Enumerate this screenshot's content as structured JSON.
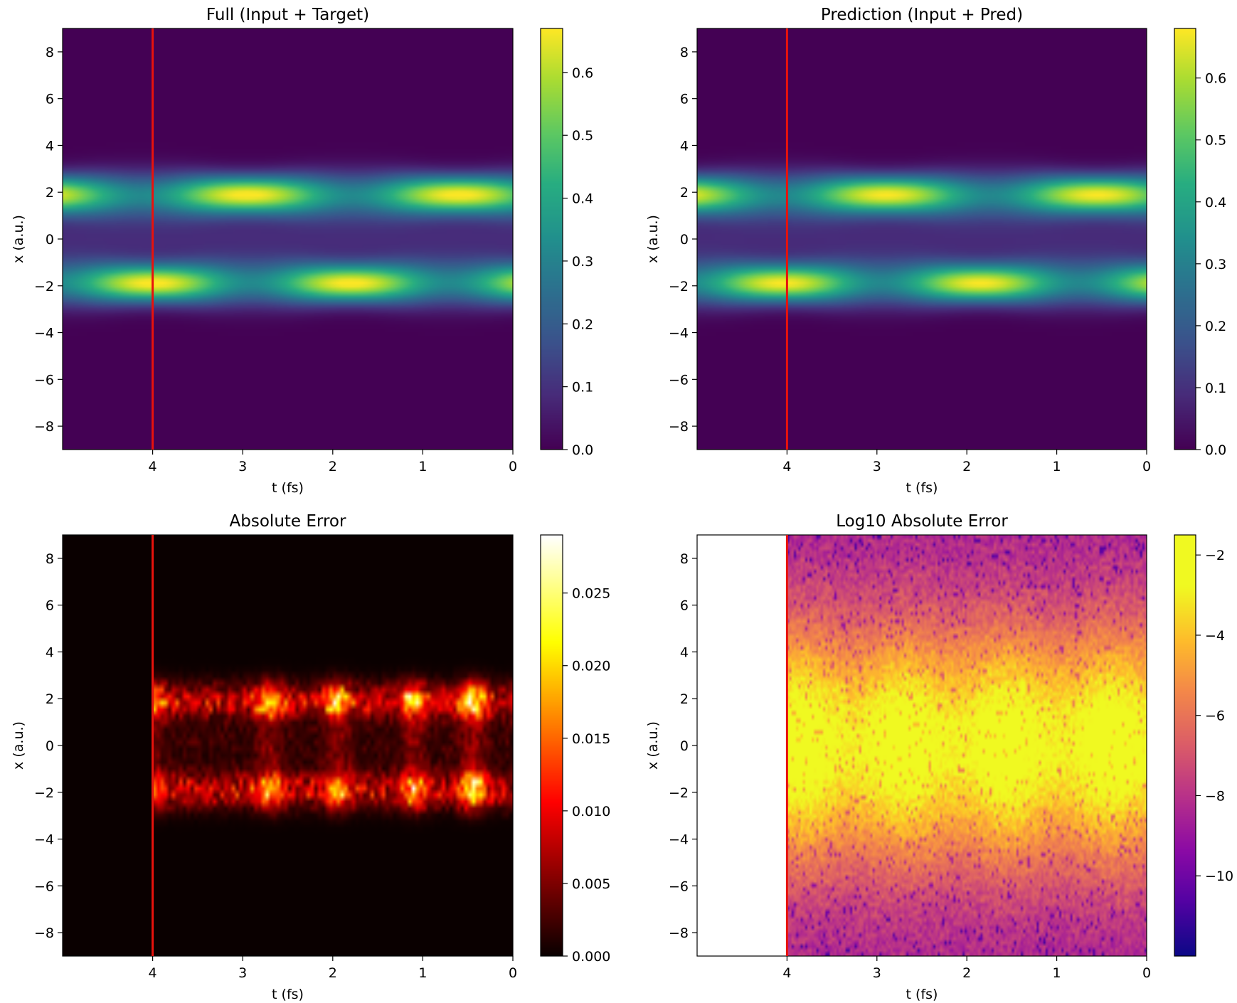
{
  "chart_data": [
    {
      "type": "heatmap",
      "title": "Full (Input + Target)",
      "xlabel": "t (fs)",
      "ylabel": "x (a.u.)",
      "xlim": [
        5,
        0
      ],
      "ylim": [
        -9,
        9
      ],
      "x_ticks": [
        "4",
        "3",
        "2",
        "1",
        "0"
      ],
      "y_ticks": [
        "−8",
        "−6",
        "−4",
        "−2",
        "0",
        "2",
        "4",
        "6",
        "8"
      ],
      "colormap": "viridis",
      "colorbar": {
        "range": [
          0,
          0.67
        ],
        "ticks": [
          0.0,
          0.1,
          0.2,
          0.3,
          0.4,
          0.5,
          0.6
        ],
        "tick_labels": [
          "0.0",
          "0.1",
          "0.2",
          "0.3",
          "0.4",
          "0.5",
          "0.6"
        ]
      },
      "vline_t": 4.0,
      "field": "packets",
      "phase": 0.0,
      "upper_peaks_t": [
        4.6,
        2.95,
        0.6
      ],
      "lower_peaks_t": [
        4.0,
        1.8
      ]
    },
    {
      "type": "heatmap",
      "title": "Prediction (Input + Pred)",
      "xlabel": "t (fs)",
      "ylabel": "x (a.u.)",
      "xlim": [
        5,
        0
      ],
      "ylim": [
        -9,
        9
      ],
      "x_ticks": [
        "4",
        "3",
        "2",
        "1",
        "0"
      ],
      "y_ticks": [
        "−8",
        "−6",
        "−4",
        "−2",
        "0",
        "2",
        "4",
        "6",
        "8"
      ],
      "colormap": "viridis",
      "colorbar": {
        "range": [
          0,
          0.68
        ],
        "ticks": [
          0.0,
          0.1,
          0.2,
          0.3,
          0.4,
          0.5,
          0.6
        ],
        "tick_labels": [
          "0.0",
          "0.1",
          "0.2",
          "0.3",
          "0.4",
          "0.5",
          "0.6"
        ]
      },
      "vline_t": 4.0,
      "field": "packets",
      "phase": 0.05
    },
    {
      "type": "heatmap",
      "title": "Absolute Error",
      "xlabel": "t (fs)",
      "ylabel": "x (a.u.)",
      "xlim": [
        5,
        0
      ],
      "ylim": [
        -9,
        9
      ],
      "x_ticks": [
        "4",
        "3",
        "2",
        "1",
        "0"
      ],
      "y_ticks": [
        "−8",
        "−6",
        "−4",
        "−2",
        "0",
        "2",
        "4",
        "6",
        "8"
      ],
      "colormap": "hot",
      "colorbar": {
        "range": [
          0,
          0.029
        ],
        "ticks": [
          0.0,
          0.005,
          0.01,
          0.015,
          0.02,
          0.025
        ],
        "tick_labels": [
          "0.000",
          "0.005",
          "0.010",
          "0.015",
          "0.020",
          "0.025"
        ]
      },
      "vline_t": 4.0,
      "field": "abs_error",
      "hotspots_t": [
        4.0,
        2.7,
        1.95,
        1.1,
        0.45
      ]
    },
    {
      "type": "heatmap",
      "title": "Log10 Absolute Error",
      "xlabel": "t (fs)",
      "ylabel": "x (a.u.)",
      "xlim": [
        5,
        0
      ],
      "ylim": [
        -9,
        9
      ],
      "x_ticks": [
        "4",
        "3",
        "2",
        "1",
        "0"
      ],
      "y_ticks": [
        "−8",
        "−6",
        "−4",
        "−2",
        "0",
        "2",
        "4",
        "6",
        "8"
      ],
      "colormap": "plasma",
      "colorbar": {
        "range": [
          -12,
          -1.5
        ],
        "ticks": [
          -2,
          -4,
          -6,
          -8,
          -10
        ],
        "tick_labels": [
          "−2",
          "−4",
          "−6",
          "−8",
          "−10"
        ]
      },
      "vline_t": 4.0,
      "field": "log_error",
      "blank_region_t": [
        5,
        4.0
      ]
    }
  ]
}
